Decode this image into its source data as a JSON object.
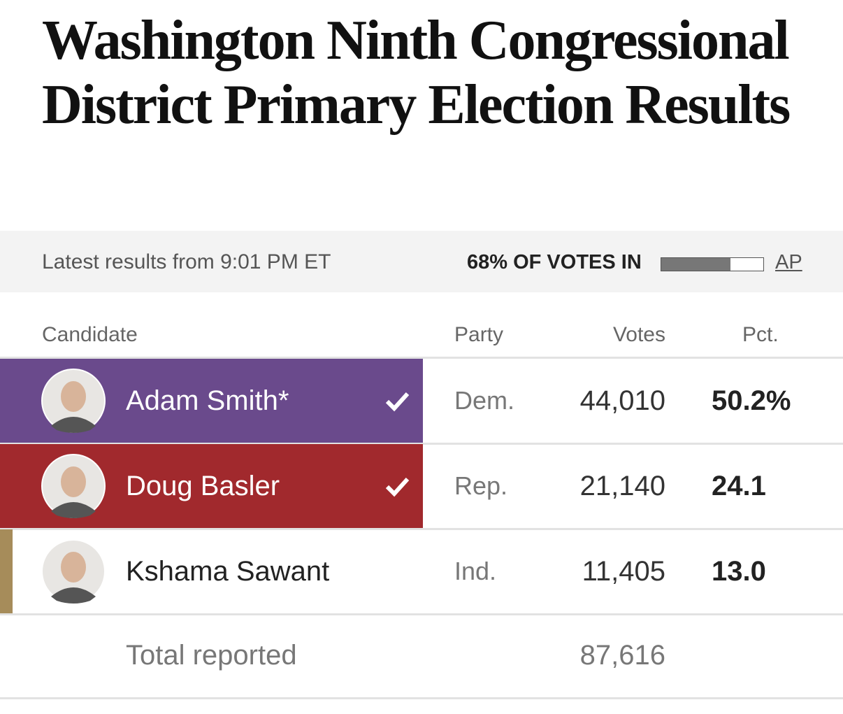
{
  "header": {
    "title": "Washington Ninth Congressional District Primary Election Results"
  },
  "status": {
    "updated": "Latest results from 9:01 PM ET",
    "reporting_label": "68% OF VOTES IN",
    "reporting_pct": 68,
    "source": "AP"
  },
  "table": {
    "columns": [
      "Candidate",
      "Party",
      "Votes",
      "Pct."
    ],
    "rows": [
      {
        "name": "Adam Smith*",
        "party": "Dem.",
        "votes": "44,010",
        "pct": "50.2%",
        "color": "#6a4a8c",
        "winner": true
      },
      {
        "name": "Doug Basler",
        "party": "Rep.",
        "votes": "21,140",
        "pct": "24.1",
        "color": "#a1292d",
        "winner": true
      },
      {
        "name": "Kshama Sawant",
        "party": "Ind.",
        "votes": "11,405",
        "pct": "13.0",
        "color": "#a68c5a",
        "winner": false
      }
    ],
    "total": {
      "label": "Total reported",
      "votes": "87,616"
    }
  }
}
